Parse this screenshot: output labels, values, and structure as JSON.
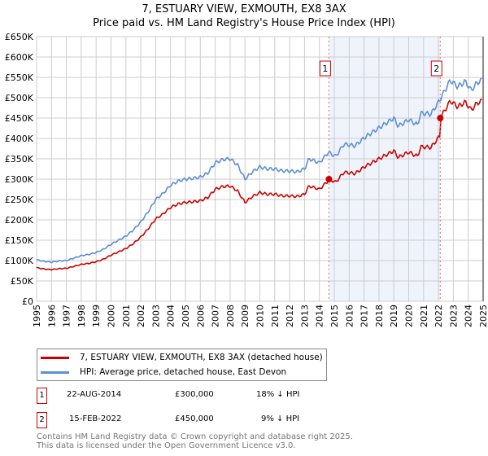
{
  "title_line1": "7, ESTUARY VIEW, EXMOUTH, EX8 3AX",
  "title_line2": "Price paid vs. HM Land Registry's House Price Index (HPI)",
  "chart_data": {
    "type": "line",
    "title": "7, ESTUARY VIEW, EXMOUTH, EX8 3AX - Price paid vs. HM Land Registry's House Price Index (HPI)",
    "xlim": [
      1995,
      2025
    ],
    "ylim": [
      0,
      650000
    ],
    "x_ticks": [
      "1995",
      "1996",
      "1997",
      "1998",
      "1999",
      "2000",
      "2001",
      "2002",
      "2003",
      "2004",
      "2005",
      "2006",
      "2007",
      "2008",
      "2009",
      "2010",
      "2011",
      "2012",
      "2013",
      "2014",
      "2015",
      "2016",
      "2017",
      "2018",
      "2019",
      "2020",
      "2021",
      "2022",
      "2023",
      "2024",
      "2025"
    ],
    "y_ticks": [
      {
        "v": 0,
        "label": "£0"
      },
      {
        "v": 50000,
        "label": "£50K"
      },
      {
        "v": 100000,
        "label": "£100K"
      },
      {
        "v": 150000,
        "label": "£150K"
      },
      {
        "v": 200000,
        "label": "£200K"
      },
      {
        "v": 250000,
        "label": "£250K"
      },
      {
        "v": 300000,
        "label": "£300K"
      },
      {
        "v": 350000,
        "label": "£350K"
      },
      {
        "v": 400000,
        "label": "£400K"
      },
      {
        "v": 450000,
        "label": "£450K"
      },
      {
        "v": 500000,
        "label": "£500K"
      },
      {
        "v": 550000,
        "label": "£550K"
      },
      {
        "v": 600000,
        "label": "£600K"
      },
      {
        "v": 650000,
        "label": "£650K"
      }
    ],
    "grid": true,
    "hpi_series": {
      "name": "HPI: Average price, detached house, East Devon",
      "color": "#5b8fd6",
      "x": [
        1995,
        1995.5,
        1996,
        1996.5,
        1997,
        1997.5,
        1998,
        1998.5,
        1999,
        1999.5,
        2000,
        2000.5,
        2001,
        2001.5,
        2002,
        2002.5,
        2003,
        2003.5,
        2004,
        2004.5,
        2005,
        2005.5,
        2006,
        2006.5,
        2007,
        2007.5,
        2008,
        2008.5,
        2009,
        2009.5,
        2010,
        2010.5,
        2011,
        2011.5,
        2012,
        2012.5,
        2013,
        2013.3,
        2014,
        2014.6,
        2015.1,
        2015.65,
        2016.4,
        2017.1,
        2018.05,
        2019.0,
        2019.3,
        2020.0,
        2020.6,
        2020.8,
        2021.5,
        2022.1,
        2022.8,
        2023.3,
        2023.8,
        2024.2,
        2024.6,
        2024.9
      ],
      "y": [
        102000,
        98000,
        96000,
        99000,
        100000,
        106000,
        112000,
        115000,
        120000,
        128000,
        140000,
        150000,
        160000,
        175000,
        195000,
        220000,
        250000,
        265000,
        285000,
        295000,
        300000,
        302000,
        305000,
        315000,
        340000,
        348000,
        350000,
        335000,
        300000,
        318000,
        330000,
        325000,
        325000,
        320000,
        320000,
        318000,
        325000,
        350000,
        340000,
        366000,
        356000,
        386000,
        382000,
        404000,
        427000,
        450000,
        430000,
        446000,
        433000,
        462000,
        460000,
        495000,
        543000,
        527000,
        540000,
        518000,
        537000,
        543000
      ]
    },
    "sales": [
      {
        "id": "1",
        "date": "22-AUG-2014",
        "x": 2014.64,
        "price": 300000,
        "price_label": "£300,000",
        "delta": "18% ↓ HPI"
      },
      {
        "id": "2",
        "date": "15-FEB-2022",
        "x": 2022.12,
        "price": 450000,
        "price_label": "£450,000",
        "delta": "9% ↓ HPI"
      }
    ],
    "property_series": {
      "name": "7, ESTUARY VIEW, EXMOUTH, EX8 3AX (detached house)",
      "color": "#cc0000"
    },
    "legend": [
      {
        "label": "7, ESTUARY VIEW, EXMOUTH, EX8 3AX (detached house)",
        "color": "#cc0000"
      },
      {
        "label": "HPI: Average price, detached house, East Devon",
        "color": "#5b8fd6"
      }
    ],
    "legend_placement": "bottom"
  },
  "footer_line1": "Contains HM Land Registry data © Crown copyright and database right 2025.",
  "footer_line2": "This data is licensed under the Open Government Licence v3.0."
}
